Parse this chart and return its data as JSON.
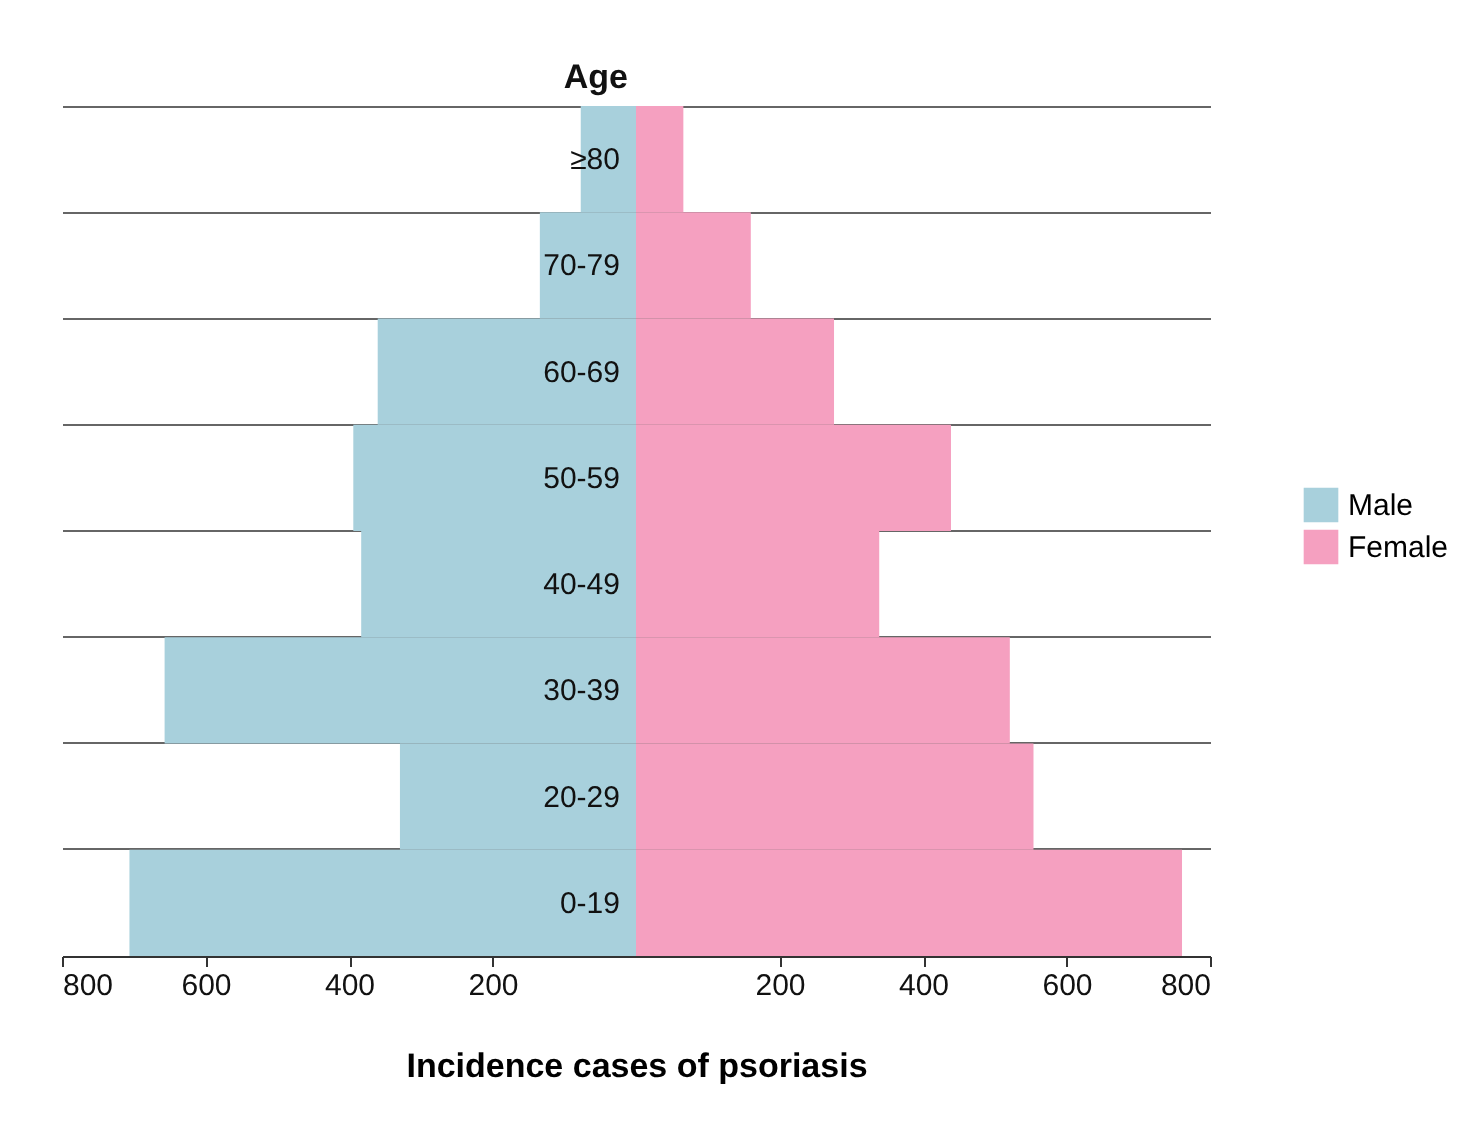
{
  "chart_data": {
    "type": "bar",
    "orientation": "horizontal",
    "stacked": true,
    "ylabel": "Age",
    "xlabel": "Incidence cases of psoriasis",
    "categories": [
      "≥80",
      "70-79",
      "60-69",
      "50-59",
      "40-49",
      "30-39",
      "20-29",
      "0-19"
    ],
    "series": [
      {
        "name": "Male",
        "color": "#a8d0dc",
        "values": [
          -77,
          -134,
          -360,
          -394,
          -383,
          -657,
          -329,
          -706
        ]
      },
      {
        "name": "Female",
        "color": "#f5a0c0",
        "values": [
          66,
          160,
          276,
          439,
          339,
          521,
          554,
          761
        ]
      }
    ],
    "xlim": [
      -800,
      800
    ],
    "xticks": [
      {
        "value": -800,
        "label": "800"
      },
      {
        "value": -600,
        "label": "600"
      },
      {
        "value": -400,
        "label": "400"
      },
      {
        "value": -200,
        "label": "200"
      },
      200,
      400,
      600,
      800
    ],
    "grid": "y",
    "legend": "right"
  }
}
